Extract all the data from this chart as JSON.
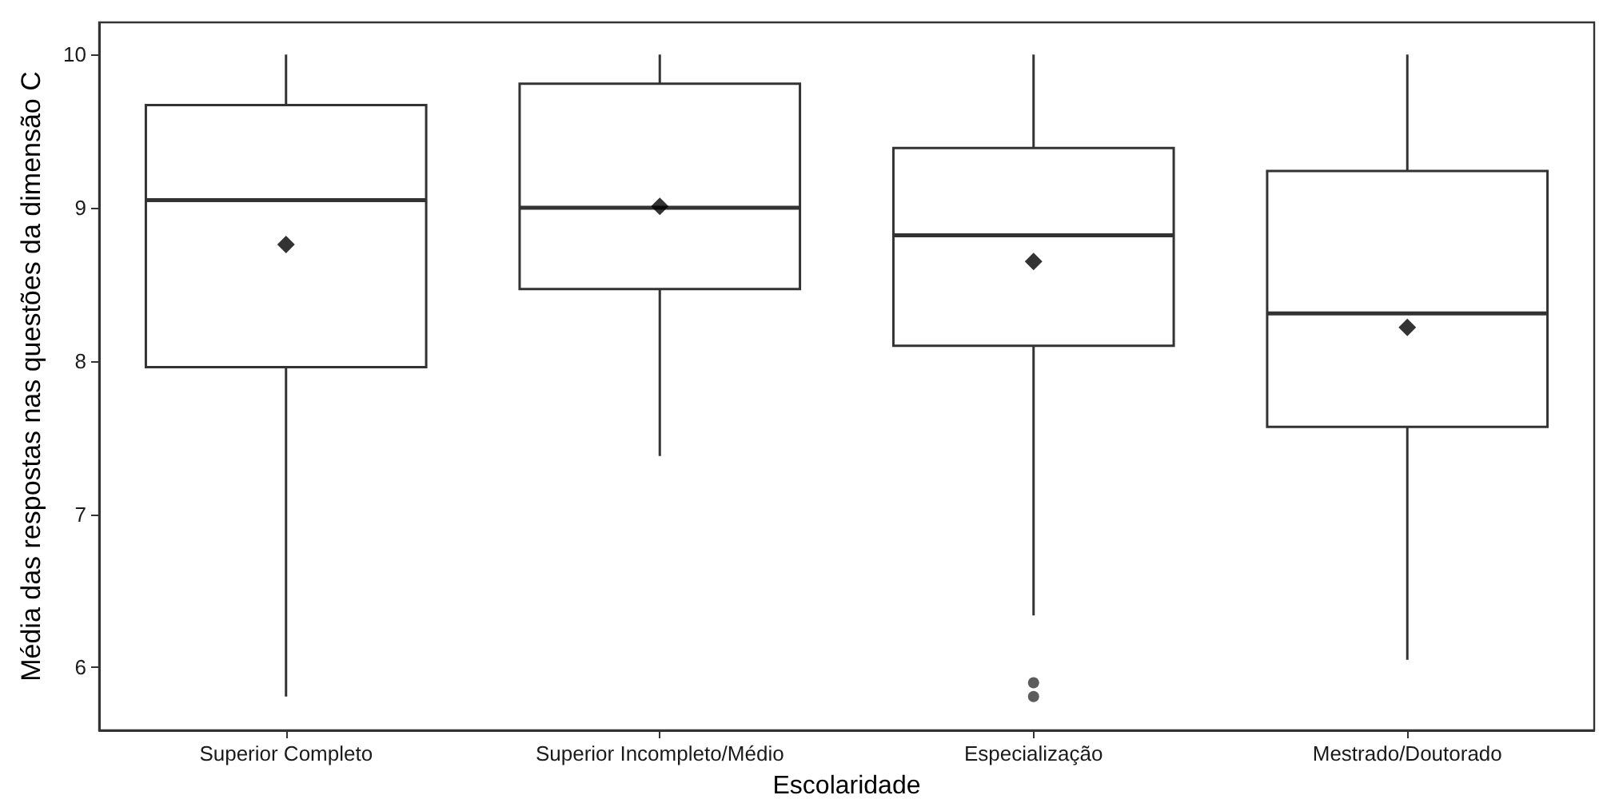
{
  "chart_data": {
    "type": "box",
    "xlabel": "Escolaridade",
    "ylabel": "Média das respostas nas questões da dimensão C",
    "categories": [
      "Superior Completo",
      "Superior Incompleto/Médio",
      "Especialização",
      "Mestrado/Doutorado"
    ],
    "boxes": [
      {
        "low": 5.81,
        "q1": 7.96,
        "median": 9.05,
        "q3": 9.67,
        "high": 10,
        "mean": 8.76
      },
      {
        "low": 7.38,
        "q1": 8.47,
        "median": 9.0,
        "q3": 9.81,
        "high": 10,
        "mean": 9.01
      },
      {
        "low": 6.34,
        "q1": 8.1,
        "median": 8.82,
        "q3": 9.39,
        "high": 10,
        "mean": 8.65,
        "outliers": [
          5.9,
          5.81
        ]
      },
      {
        "low": 6.05,
        "q1": 7.57,
        "median": 8.31,
        "q3": 9.24,
        "high": 10,
        "mean": 8.22
      }
    ],
    "color": "#333333",
    "ylim": [
      5.59,
      10.21
    ],
    "yticks": [
      6,
      7,
      8,
      9,
      10
    ]
  }
}
